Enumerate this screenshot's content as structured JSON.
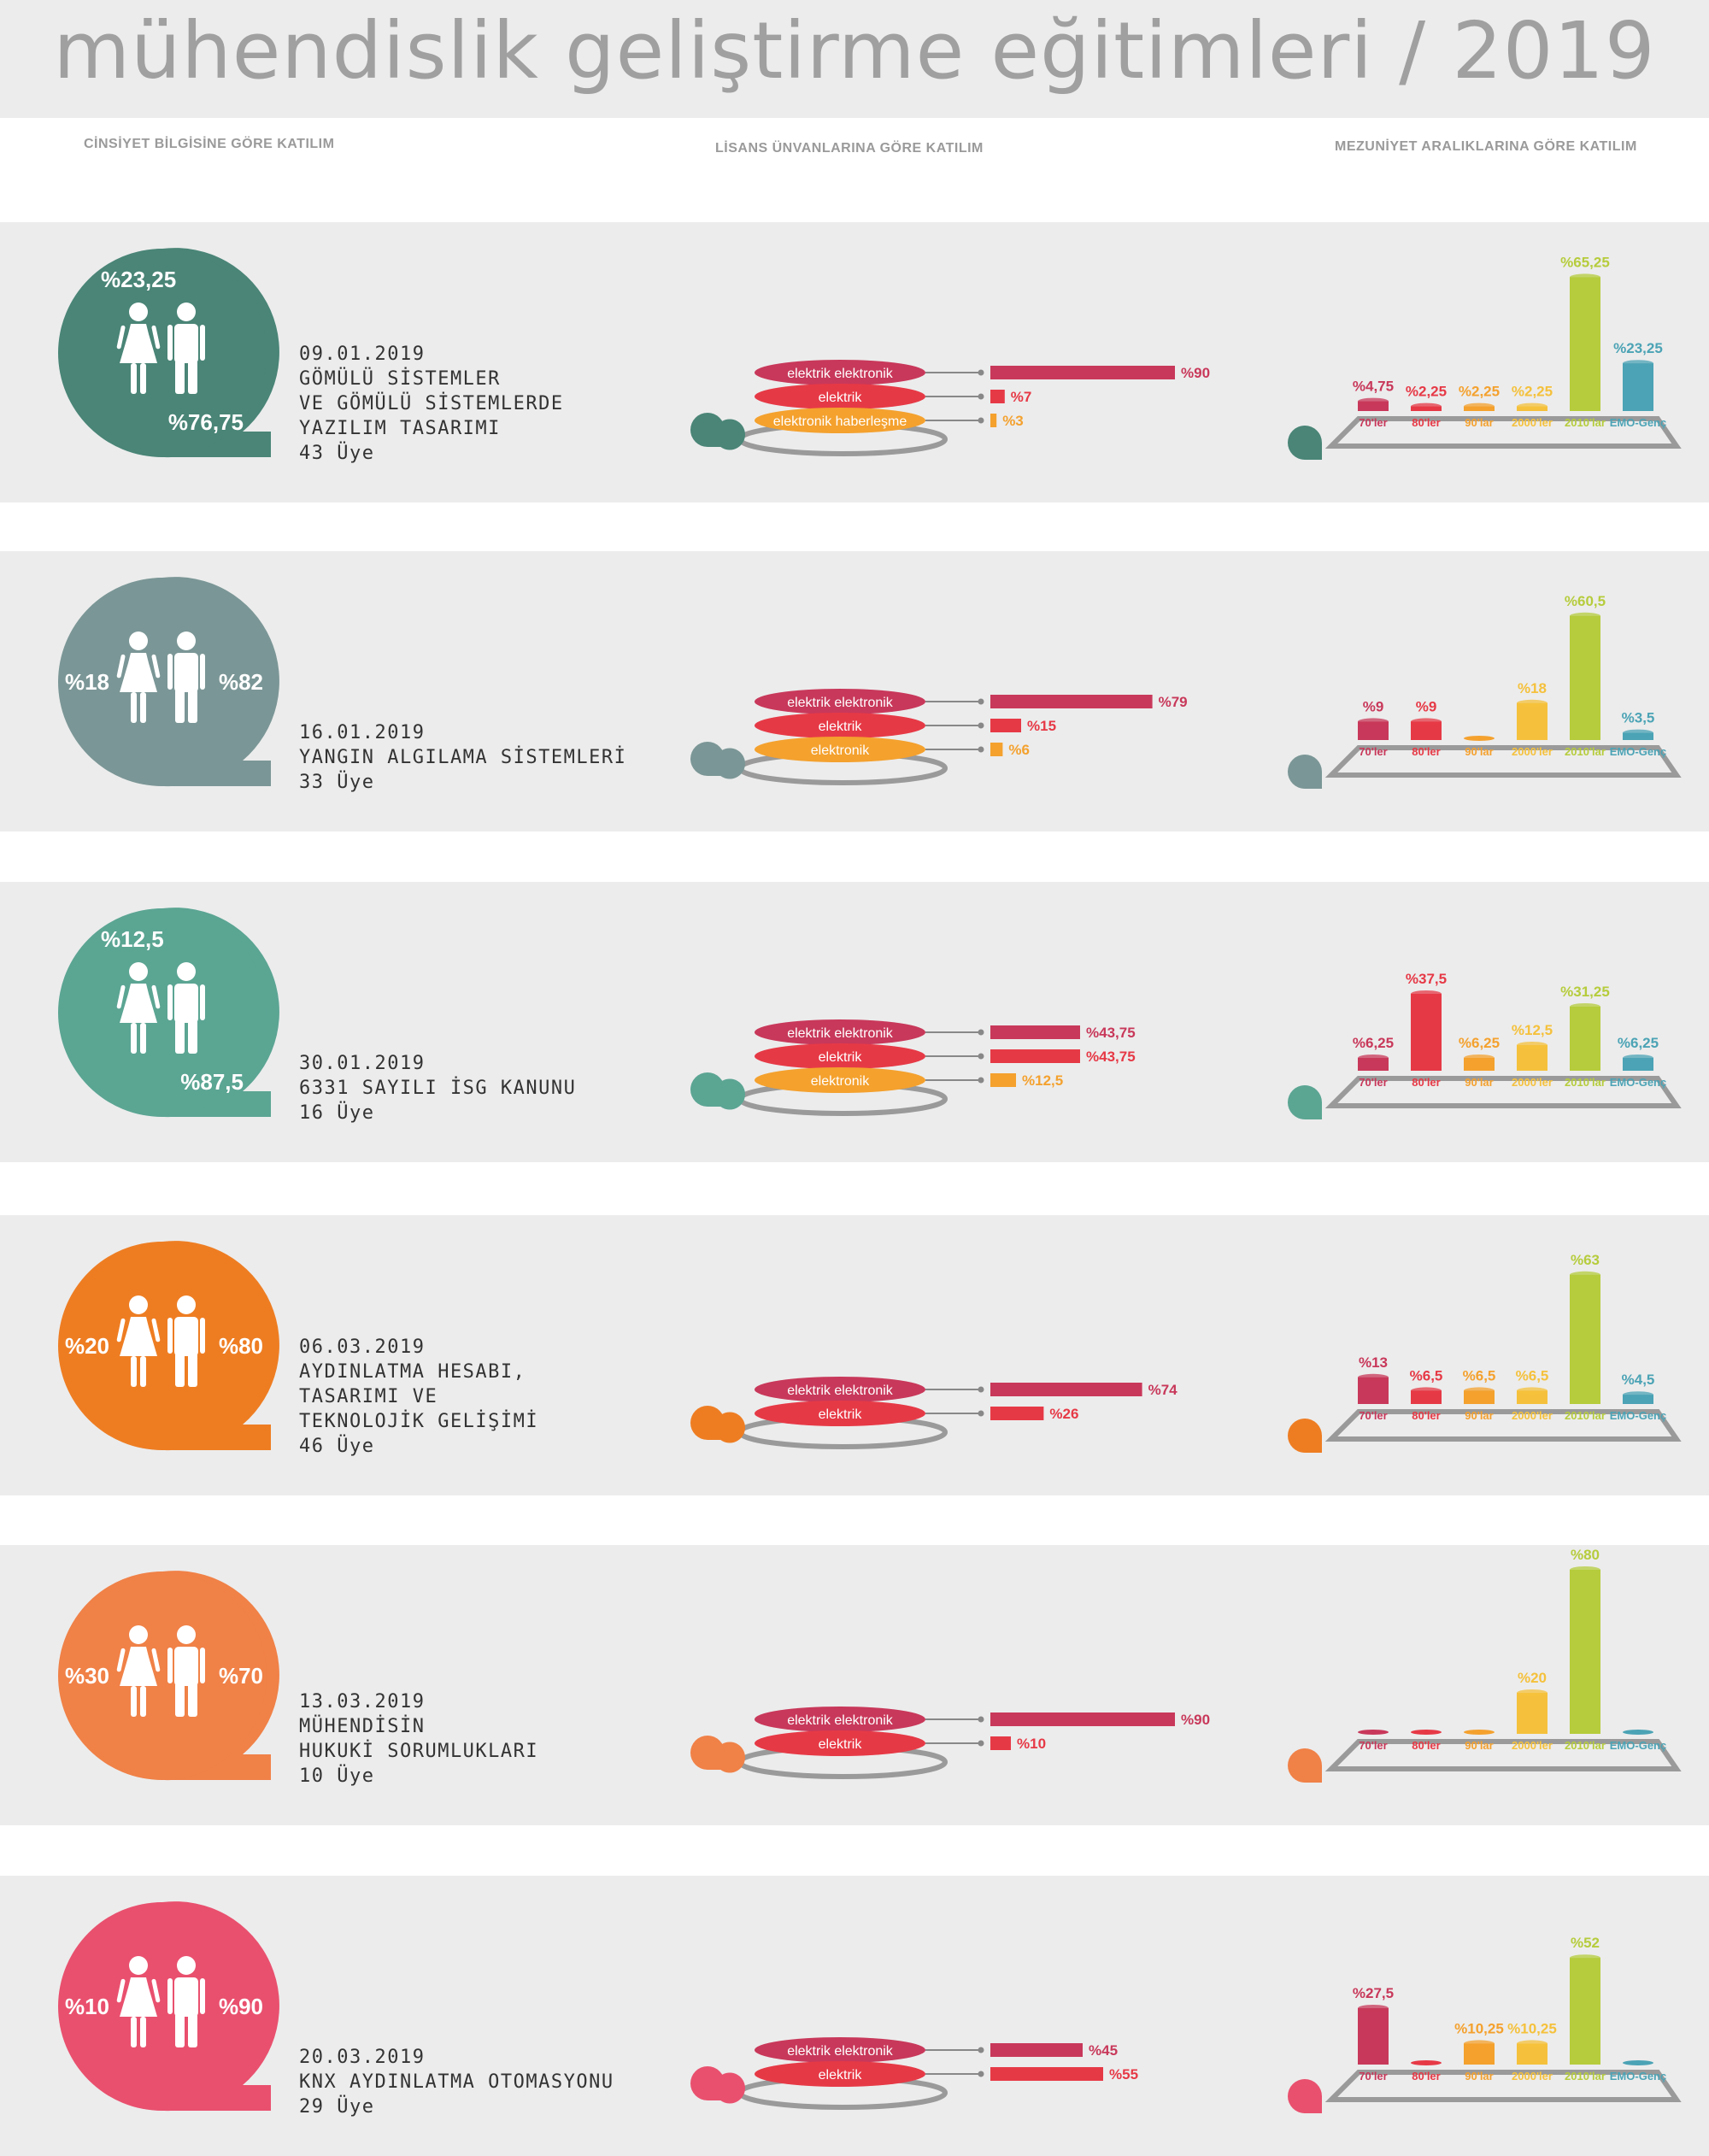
{
  "title": "mühendislik geliştirme eğitimleri / 2019",
  "headers": {
    "gender": "CİNSİYET BİLGİSİNE GÖRE KATILIM",
    "degree": "LİSANS ÜNVANLARINA GÖRE KATILIM",
    "graduation": "MEZUNİYET ARALIKLARINA GÖRE KATILIM"
  },
  "colors": {
    "elektrik_elektronik": "#c8385a",
    "elektrik": "#e63946",
    "elektronik": "#f4a12e",
    "70ler": "#c8385a",
    "80ler": "#e63946",
    "90lar": "#f4a12e",
    "2000ler": "#f5c13c",
    "2010lar": "#b6cc3c",
    "emo_genc": "#4ba3b5"
  },
  "chart_data": [
    {
      "type": "bar",
      "date": "09.01.2019",
      "name_lines": [
        "GÖMÜLÜ SİSTEMLER",
        "VE GÖMÜLÜ SİSTEMLERDE",
        "YAZILIM TASARIMI"
      ],
      "members": "43 Üye",
      "accent": "#4a8577",
      "gender": {
        "female": "%23,25",
        "male": "%76,75",
        "layout": "top-bottom"
      },
      "degree": {
        "categories": [
          "elektrik elektronik",
          "elektrik",
          "elektronik haberleşme"
        ],
        "colors": [
          "#c8385a",
          "#e63946",
          "#f4a12e"
        ],
        "values": [
          90,
          7,
          3
        ],
        "labels": [
          "%90",
          "%7",
          "%3"
        ]
      },
      "graduation": {
        "categories": [
          "70'ler",
          "80'ler",
          "90'lar",
          "2000'ler",
          "2010'lar",
          "EMO-Genç"
        ],
        "colors": [
          "#c8385a",
          "#e63946",
          "#f4a12e",
          "#f5c13c",
          "#b6cc3c",
          "#4ba3b5"
        ],
        "values": [
          4.75,
          2.25,
          2.25,
          2.25,
          65.25,
          23.25
        ],
        "labels": [
          "%4,75",
          "%2,25",
          "%2,25",
          "%2,25",
          "%65,25",
          "%23,25"
        ]
      }
    },
    {
      "type": "bar",
      "date": "16.01.2019",
      "name_lines": [
        "YANGIN ALGILAMA SİSTEMLERİ"
      ],
      "members": "33 Üye",
      "accent": "#7b9696",
      "gender": {
        "female": "%18",
        "male": "%82",
        "layout": "sides"
      },
      "degree": {
        "categories": [
          "elektrik elektronik",
          "elektrik",
          "elektronik"
        ],
        "colors": [
          "#c8385a",
          "#e63946",
          "#f4a12e"
        ],
        "values": [
          79,
          15,
          6
        ],
        "labels": [
          "%79",
          "%15",
          "%6"
        ]
      },
      "graduation": {
        "categories": [
          "70'ler",
          "80'ler",
          "90'lar",
          "2000'ler",
          "2010'lar",
          "EMO-Genç"
        ],
        "colors": [
          "#c8385a",
          "#e63946",
          "#f4a12e",
          "#f5c13c",
          "#b6cc3c",
          "#4ba3b5"
        ],
        "values": [
          9,
          9,
          0,
          18,
          60.5,
          3.5
        ],
        "labels": [
          "%9",
          "%9",
          "",
          "%18",
          "%60,5",
          "%3,5"
        ]
      }
    },
    {
      "type": "bar",
      "date": "30.01.2019",
      "name_lines": [
        "6331 SAYILI İSG KANUNU"
      ],
      "members": "16 Üye",
      "accent": "#5ba593",
      "gender": {
        "female": "%12,5",
        "male": "%87,5",
        "layout": "top-bottom"
      },
      "degree": {
        "categories": [
          "elektrik elektronik",
          "elektrik",
          "elektronik"
        ],
        "colors": [
          "#c8385a",
          "#e63946",
          "#f4a12e"
        ],
        "values": [
          43.75,
          43.75,
          12.5
        ],
        "labels": [
          "%43,75",
          "%43,75",
          "%12,5"
        ]
      },
      "graduation": {
        "categories": [
          "70'ler",
          "80'ler",
          "90'lar",
          "2000'ler",
          "2010'lar",
          "EMO-Genç"
        ],
        "colors": [
          "#c8385a",
          "#e63946",
          "#f4a12e",
          "#f5c13c",
          "#b6cc3c",
          "#4ba3b5"
        ],
        "values": [
          6.25,
          37.5,
          6.25,
          12.5,
          31.25,
          6.25
        ],
        "labels": [
          "%6,25",
          "%37,5",
          "%6,25",
          "%12,5",
          "%31,25",
          "%6,25"
        ]
      }
    },
    {
      "type": "bar",
      "date": "06.03.2019",
      "name_lines": [
        "AYDINLATMA HESABI,",
        "TASARIMI VE",
        "TEKNOLOJİK GELİŞİMİ"
      ],
      "members": "46 Üye",
      "accent": "#ee7d22",
      "gender": {
        "female": "%20",
        "male": "%80",
        "layout": "sides"
      },
      "degree": {
        "categories": [
          "elektrik elektronik",
          "elektrik"
        ],
        "colors": [
          "#c8385a",
          "#e63946"
        ],
        "values": [
          74,
          26
        ],
        "labels": [
          "%74",
          "%26"
        ]
      },
      "graduation": {
        "categories": [
          "70'ler",
          "80'ler",
          "90'lar",
          "2000'ler",
          "2010'lar",
          "EMO-Genç"
        ],
        "colors": [
          "#c8385a",
          "#e63946",
          "#f4a12e",
          "#f5c13c",
          "#b6cc3c",
          "#4ba3b5"
        ],
        "values": [
          13,
          6.5,
          6.5,
          6.5,
          63,
          4.5
        ],
        "labels": [
          "%13",
          "%6,5",
          "%6,5",
          "%6,5",
          "%63",
          "%4,5"
        ]
      }
    },
    {
      "type": "bar",
      "date": "13.03.2019",
      "name_lines": [
        "MÜHENDİSİN",
        "HUKUKİ SORUMLUKLARI"
      ],
      "members": "10 Üye",
      "accent": "#f08147",
      "gender": {
        "female": "%30",
        "male": "%70",
        "layout": "sides"
      },
      "degree": {
        "categories": [
          "elektrik elektronik",
          "elektrik"
        ],
        "colors": [
          "#c8385a",
          "#e63946"
        ],
        "values": [
          90,
          10
        ],
        "labels": [
          "%90",
          "%10"
        ]
      },
      "graduation": {
        "categories": [
          "70'ler",
          "80'ler",
          "90'lar",
          "2000'ler",
          "2010'lar",
          "EMO-Genç"
        ],
        "colors": [
          "#c8385a",
          "#e63946",
          "#f4a12e",
          "#f5c13c",
          "#b6cc3c",
          "#4ba3b5"
        ],
        "values": [
          0,
          0,
          0,
          20,
          80,
          0
        ],
        "labels": [
          "",
          "",
          "",
          "%20",
          "%80",
          ""
        ]
      }
    },
    {
      "type": "bar",
      "date": "20.03.2019",
      "name_lines": [
        "KNX AYDINLATMA OTOMASYONU"
      ],
      "members": "29 Üye",
      "accent": "#e9506e",
      "gender": {
        "female": "%10",
        "male": "%90",
        "layout": "sides"
      },
      "degree": {
        "categories": [
          "elektrik elektronik",
          "elektrik"
        ],
        "colors": [
          "#c8385a",
          "#e63946"
        ],
        "values": [
          45,
          55
        ],
        "labels": [
          "%45",
          "%55"
        ]
      },
      "graduation": {
        "categories": [
          "70'ler",
          "80'ler",
          "90'lar",
          "2000'ler",
          "2010'lar",
          "EMO-Genç"
        ],
        "colors": [
          "#c8385a",
          "#e63946",
          "#f4a12e",
          "#f5c13c",
          "#b6cc3c",
          "#4ba3b5"
        ],
        "values": [
          27.5,
          0,
          10.25,
          10.25,
          52,
          0
        ],
        "labels": [
          "%27,5",
          "",
          "%10,25",
          "%10,25",
          "%52",
          ""
        ]
      }
    }
  ]
}
